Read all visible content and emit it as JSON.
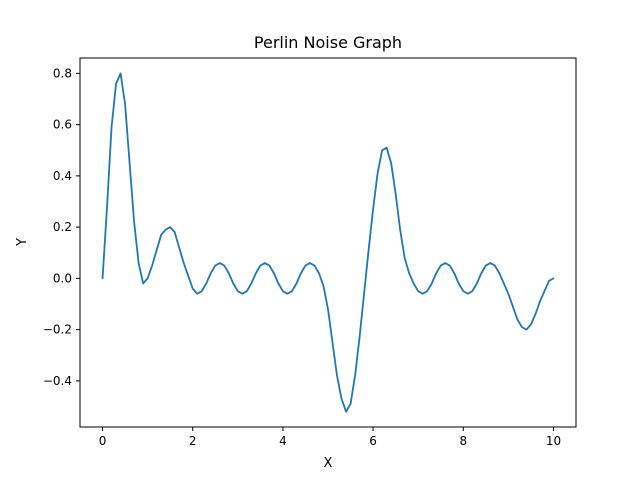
{
  "chart_data": {
    "type": "line",
    "title": "Perlin Noise Graph",
    "xlabel": "X",
    "ylabel": "Y",
    "xlim": [
      -0.5,
      10.5
    ],
    "ylim": [
      -0.58,
      0.86
    ],
    "grid": false,
    "legend": "none",
    "x_ticks": [
      0,
      2,
      4,
      6,
      8,
      10
    ],
    "x_tick_labels": [
      "0",
      "2",
      "4",
      "6",
      "8",
      "10"
    ],
    "y_ticks": [
      -0.4,
      -0.2,
      0.0,
      0.2,
      0.4,
      0.6,
      0.8
    ],
    "y_tick_labels": [
      "−0.4",
      "−0.2",
      "0.0",
      "0.2",
      "0.4",
      "0.6",
      "0.8"
    ],
    "series": [
      {
        "color": "#1f77b4",
        "x": [
          0,
          0.1,
          0.2,
          0.3,
          0.4,
          0.5,
          0.6,
          0.7,
          0.8,
          0.9,
          1.0,
          1.1,
          1.2,
          1.3,
          1.4,
          1.5,
          1.6,
          1.7,
          1.8,
          1.9,
          2.0,
          2.1,
          2.2,
          2.3,
          2.4,
          2.5,
          2.6,
          2.7,
          2.8,
          2.9,
          3.0,
          3.1,
          3.2,
          3.3,
          3.4,
          3.5,
          3.6,
          3.7,
          3.8,
          3.9,
          4.0,
          4.1,
          4.2,
          4.3,
          4.4,
          4.5,
          4.6,
          4.7,
          4.8,
          4.9,
          5.0,
          5.1,
          5.2,
          5.3,
          5.4,
          5.5,
          5.6,
          5.7,
          5.8,
          5.9,
          6.0,
          6.1,
          6.2,
          6.3,
          6.4,
          6.5,
          6.6,
          6.7,
          6.8,
          6.9,
          7.0,
          7.1,
          7.2,
          7.3,
          7.4,
          7.5,
          7.6,
          7.7,
          7.8,
          7.9,
          8.0,
          8.1,
          8.2,
          8.3,
          8.4,
          8.5,
          8.6,
          8.7,
          8.8,
          8.9,
          9.0,
          9.1,
          9.2,
          9.3,
          9.4,
          9.5,
          9.6,
          9.7,
          9.8,
          9.9,
          10.0
        ],
        "y": [
          0.0,
          0.28,
          0.59,
          0.76,
          0.8,
          0.68,
          0.45,
          0.22,
          0.06,
          -0.02,
          0.0,
          0.05,
          0.11,
          0.17,
          0.19,
          0.2,
          0.18,
          0.12,
          0.06,
          0.01,
          -0.04,
          -0.06,
          -0.05,
          -0.02,
          0.02,
          0.05,
          0.06,
          0.05,
          0.02,
          -0.02,
          -0.05,
          -0.06,
          -0.05,
          -0.02,
          0.02,
          0.05,
          0.06,
          0.05,
          0.02,
          -0.02,
          -0.05,
          -0.06,
          -0.05,
          -0.02,
          0.02,
          0.05,
          0.06,
          0.05,
          0.02,
          -0.03,
          -0.12,
          -0.25,
          -0.38,
          -0.47,
          -0.52,
          -0.49,
          -0.38,
          -0.23,
          -0.06,
          0.11,
          0.27,
          0.41,
          0.5,
          0.51,
          0.45,
          0.33,
          0.19,
          0.08,
          0.02,
          -0.02,
          -0.05,
          -0.06,
          -0.05,
          -0.02,
          0.02,
          0.05,
          0.06,
          0.05,
          0.02,
          -0.02,
          -0.05,
          -0.06,
          -0.05,
          -0.02,
          0.02,
          0.05,
          0.06,
          0.05,
          0.02,
          -0.02,
          -0.06,
          -0.11,
          -0.16,
          -0.19,
          -0.2,
          -0.18,
          -0.14,
          -0.09,
          -0.05,
          -0.01,
          0.0
        ]
      }
    ]
  }
}
